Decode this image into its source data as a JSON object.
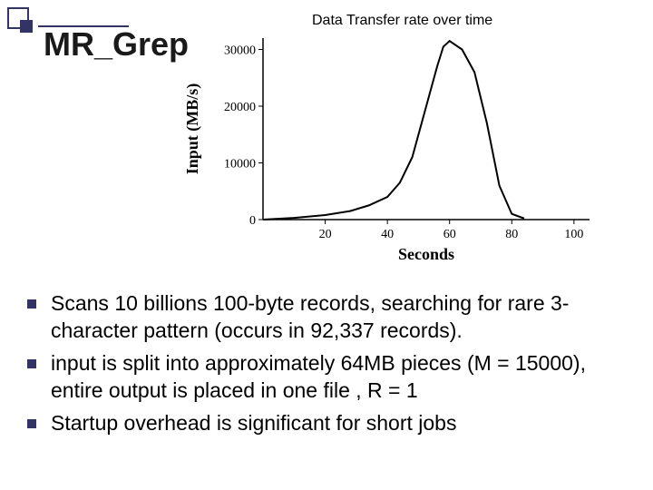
{
  "title": "MR_Grep",
  "chart": {
    "title": "Data Transfer rate over time",
    "type": "line",
    "xlabel": "Seconds",
    "ylabel": "Input (MB/s)",
    "xlim": [
      0,
      105
    ],
    "ylim": [
      0,
      32000
    ],
    "xticks": [
      20,
      40,
      60,
      80,
      100
    ],
    "yticks": [
      0,
      10000,
      20000,
      30000
    ],
    "x": [
      0,
      10,
      20,
      28,
      34,
      40,
      44,
      48,
      52,
      56,
      58,
      60,
      64,
      68,
      72,
      76,
      80,
      84
    ],
    "y": [
      0,
      300,
      800,
      1500,
      2500,
      4000,
      6500,
      11000,
      19000,
      27000,
      30500,
      31500,
      30000,
      26000,
      17000,
      6000,
      1000,
      200
    ],
    "line_color": "#000000",
    "line_width": 2,
    "background_color": "#ffffff",
    "axis_color": "#000000",
    "tick_fontsize": 14,
    "label_fontsize": 18
  },
  "bullets": [
    "Scans 10 billions 100-byte records, searching for rare 3-character pattern (occurs in 92,337 records).",
    " input is split into approximately 64MB pieces        (M = 15000), entire output is placed in one file , R = 1",
    "Startup overhead is significant for short jobs"
  ],
  "colors": {
    "accent": "#333366",
    "text": "#000000",
    "title": "#1a1a1a"
  }
}
